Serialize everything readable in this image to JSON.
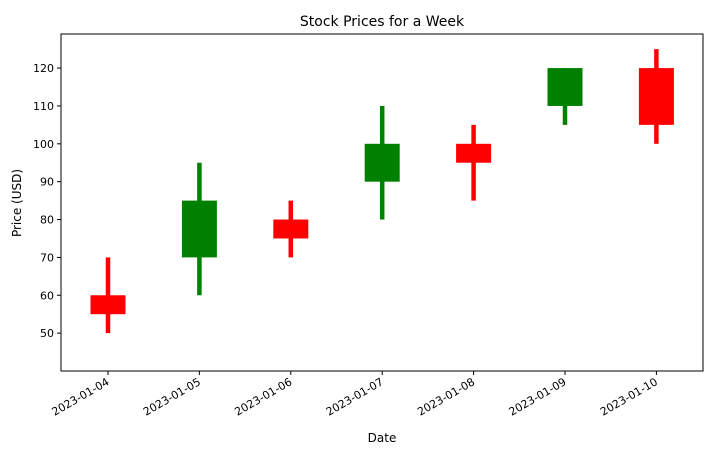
{
  "chart_data": {
    "type": "candlestick",
    "title": "Stock Prices for a Week",
    "xlabel": "Date",
    "ylabel": "Price (USD)",
    "ylim": [
      40,
      129
    ],
    "yticks": [
      50,
      60,
      70,
      80,
      90,
      100,
      110,
      120
    ],
    "grid": false,
    "legend": false,
    "colors": {
      "up": "#008000",
      "down": "#ff0000"
    },
    "candles": [
      {
        "date": "2023-01-04",
        "open": 60,
        "high": 70,
        "low": 50,
        "close": 55
      },
      {
        "date": "2023-01-05",
        "open": 70,
        "high": 95,
        "low": 60,
        "close": 85
      },
      {
        "date": "2023-01-06",
        "open": 80,
        "high": 85,
        "low": 70,
        "close": 75
      },
      {
        "date": "2023-01-07",
        "open": 90,
        "high": 110,
        "low": 80,
        "close": 100
      },
      {
        "date": "2023-01-08",
        "open": 100,
        "high": 105,
        "low": 85,
        "close": 95
      },
      {
        "date": "2023-01-09",
        "open": 110,
        "high": 120,
        "low": 105,
        "close": 120
      },
      {
        "date": "2023-01-10",
        "open": 120,
        "high": 125,
        "low": 100,
        "close": 105
      }
    ]
  }
}
